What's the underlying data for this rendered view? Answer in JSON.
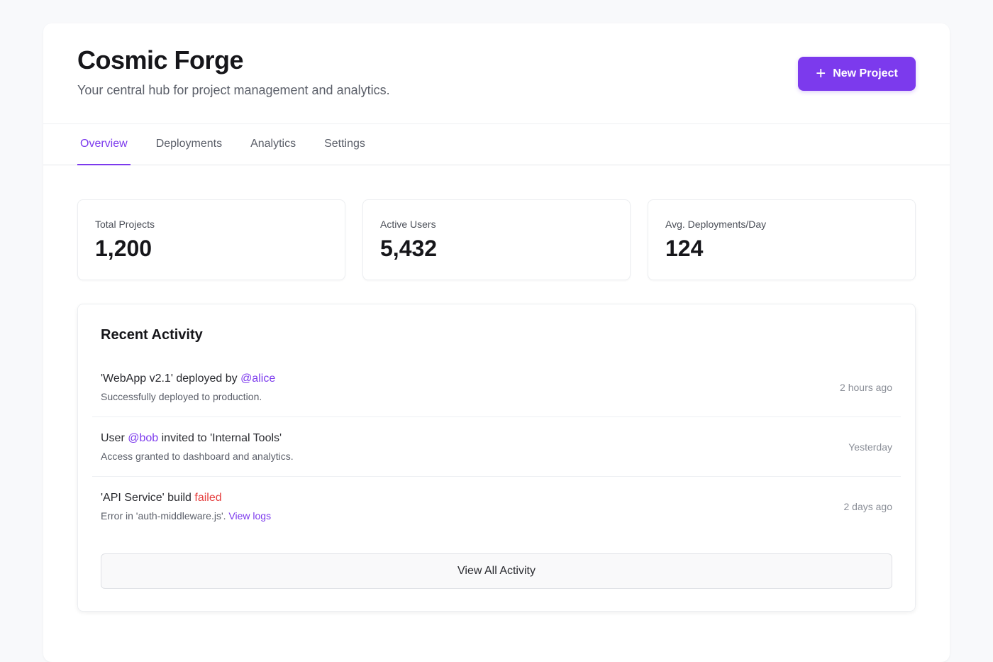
{
  "header": {
    "title": "Cosmic Forge",
    "subtitle": "Your central hub for project management and analytics.",
    "new_project_label": "New Project"
  },
  "tabs": [
    {
      "label": "Overview",
      "active": true
    },
    {
      "label": "Deployments"
    },
    {
      "label": "Analytics"
    },
    {
      "label": "Settings"
    }
  ],
  "stats": [
    {
      "label": "Total Projects",
      "value": "1,200"
    },
    {
      "label": "Active Users",
      "value": "5,432"
    },
    {
      "label": "Avg. Deployments/Day",
      "value": "124"
    }
  ],
  "activity": {
    "title": "Recent Activity",
    "items": [
      {
        "pre": "'WebApp v2.1' deployed by ",
        "highlight": "@alice",
        "post": "",
        "sub": "Successfully deployed to production.",
        "time": "2 hours ago"
      },
      {
        "pre": "User ",
        "highlight": "@bob",
        "post": " invited to 'Internal Tools'",
        "sub": "Access granted to dashboard and analytics.",
        "time": "Yesterday"
      },
      {
        "pre": "'API Service' build ",
        "highlight": "failed",
        "post": "",
        "sub": "Error in 'auth-middleware.js'. ",
        "link": "View logs",
        "time": "2 days ago"
      }
    ],
    "view_all_label": "View All Activity"
  }
}
